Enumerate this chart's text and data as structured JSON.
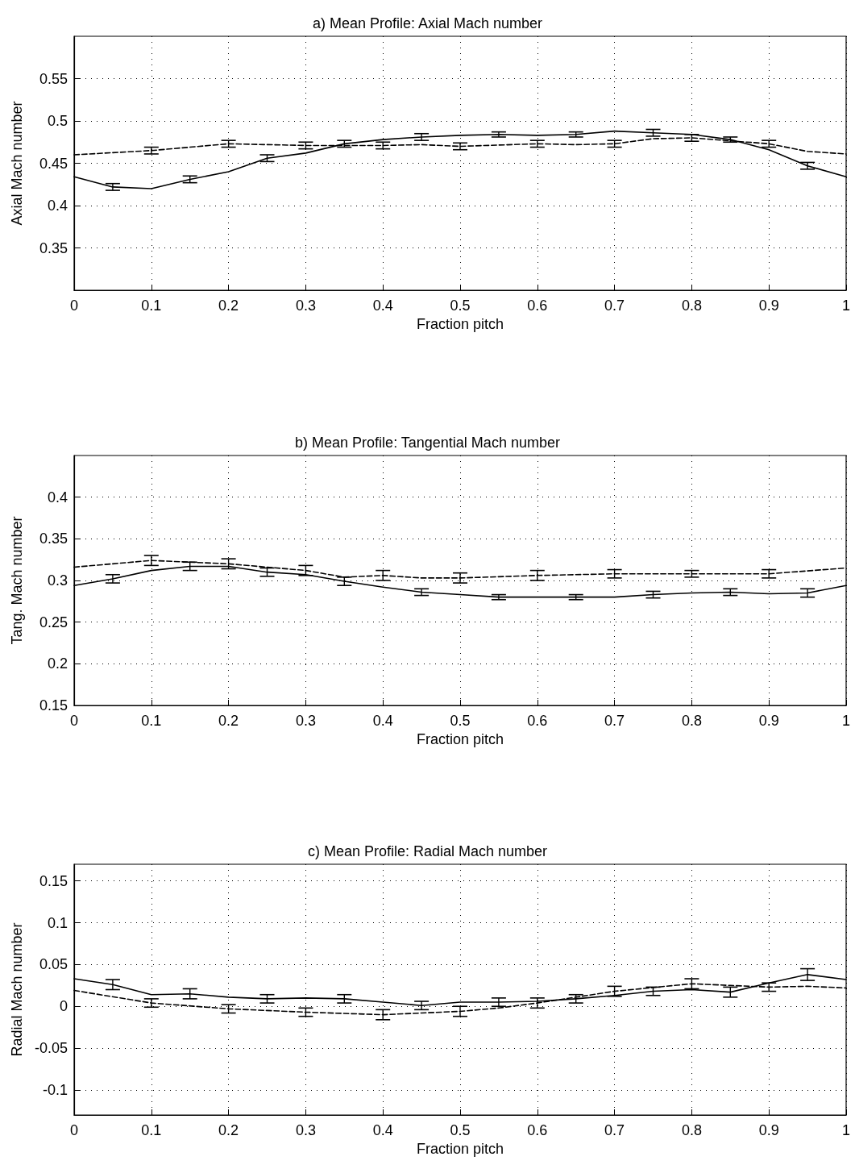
{
  "chart_data": [
    {
      "type": "line",
      "title": "a) Mean Profile: Axial Mach number",
      "xlabel": "Fraction pitch",
      "ylabel": "Axial Mach number",
      "xlim": [
        0,
        1
      ],
      "xticks": [
        0,
        0.1,
        0.2,
        0.3,
        0.4,
        0.5,
        0.6,
        0.7,
        0.8,
        0.9,
        1
      ],
      "ylim": [
        0.3,
        0.6
      ],
      "yticks": [
        0.35,
        0.4,
        0.45,
        0.5,
        0.55
      ],
      "grid": true,
      "marker": "none",
      "series": [
        {
          "color": "#000000",
          "line_style": "solid",
          "x": [
            0,
            0.05,
            0.1,
            0.15,
            0.2,
            0.25,
            0.3,
            0.35,
            0.4,
            0.45,
            0.5,
            0.55,
            0.6,
            0.65,
            0.7,
            0.75,
            0.8,
            0.85,
            0.9,
            0.95,
            1
          ],
          "values": [
            0.434,
            0.422,
            0.42,
            0.431,
            0.44,
            0.456,
            0.462,
            0.473,
            0.478,
            0.481,
            0.483,
            0.484,
            0.483,
            0.484,
            0.488,
            0.486,
            0.484,
            0.478,
            0.466,
            0.447,
            0.434
          ],
          "errors": [
            null,
            0.004,
            null,
            0.004,
            null,
            0.004,
            null,
            0.004,
            null,
            0.004,
            null,
            0.003,
            null,
            0.003,
            null,
            0.004,
            null,
            0.003,
            null,
            0.004,
            null
          ]
        },
        {
          "color": "#000000",
          "line_style": "dashed",
          "x": [
            0,
            0.1,
            0.2,
            0.3,
            0.4,
            0.45,
            0.5,
            0.6,
            0.65,
            0.7,
            0.75,
            0.8,
            0.9,
            0.95,
            1
          ],
          "values": [
            0.46,
            0.465,
            0.473,
            0.471,
            0.471,
            0.472,
            0.47,
            0.473,
            0.472,
            0.473,
            0.479,
            0.48,
            0.473,
            0.464,
            0.461
          ],
          "errors": [
            null,
            0.004,
            0.004,
            0.004,
            0.004,
            null,
            0.004,
            0.004,
            null,
            0.004,
            null,
            0.004,
            0.004,
            null,
            null
          ]
        }
      ]
    },
    {
      "type": "line",
      "title": "b) Mean Profile: Tangential Mach number",
      "xlabel": "Fraction pitch",
      "ylabel": "Tang. Mach number",
      "xlim": [
        0,
        1
      ],
      "xticks": [
        0,
        0.1,
        0.2,
        0.3,
        0.4,
        0.5,
        0.6,
        0.7,
        0.8,
        0.9,
        1
      ],
      "ylim": [
        0.15,
        0.45
      ],
      "yticks": [
        0.15,
        0.2,
        0.25,
        0.3,
        0.35,
        0.4
      ],
      "grid": true,
      "marker": "none",
      "series": [
        {
          "color": "#000000",
          "line_style": "solid",
          "x": [
            0,
            0.05,
            0.1,
            0.15,
            0.2,
            0.25,
            0.3,
            0.35,
            0.4,
            0.45,
            0.5,
            0.55,
            0.6,
            0.65,
            0.7,
            0.75,
            0.8,
            0.85,
            0.9,
            0.95,
            1
          ],
          "values": [
            0.294,
            0.302,
            0.312,
            0.317,
            0.317,
            0.31,
            0.307,
            0.299,
            0.292,
            0.286,
            0.283,
            0.28,
            0.28,
            0.28,
            0.28,
            0.283,
            0.285,
            0.286,
            0.284,
            0.285,
            0.294
          ],
          "errors": [
            null,
            0.005,
            null,
            0.005,
            null,
            0.005,
            null,
            0.005,
            null,
            0.004,
            null,
            0.003,
            null,
            0.003,
            null,
            0.004,
            null,
            0.004,
            null,
            0.005,
            null
          ]
        },
        {
          "color": "#000000",
          "line_style": "dashed",
          "x": [
            0,
            0.1,
            0.15,
            0.2,
            0.3,
            0.35,
            0.4,
            0.45,
            0.5,
            0.6,
            0.7,
            0.8,
            0.9,
            1
          ],
          "values": [
            0.316,
            0.324,
            0.322,
            0.32,
            0.312,
            0.304,
            0.306,
            0.303,
            0.303,
            0.306,
            0.308,
            0.308,
            0.308,
            0.315
          ],
          "errors": [
            null,
            0.006,
            null,
            0.006,
            0.006,
            null,
            0.006,
            null,
            0.006,
            0.006,
            0.005,
            0.004,
            0.005,
            null
          ]
        }
      ]
    },
    {
      "type": "line",
      "title": "c) Mean Profile: Radial Mach number",
      "xlabel": "Fraction pitch",
      "ylabel": "Radial Mach number",
      "xlim": [
        0,
        1
      ],
      "xticks": [
        0,
        0.1,
        0.2,
        0.3,
        0.4,
        0.5,
        0.6,
        0.7,
        0.8,
        0.9,
        1
      ],
      "ylim": [
        -0.13,
        0.17
      ],
      "yticks": [
        -0.1,
        -0.05,
        0,
        0.05,
        0.1,
        0.15
      ],
      "grid": true,
      "marker": "none",
      "series": [
        {
          "color": "#000000",
          "line_style": "solid",
          "x": [
            0,
            0.05,
            0.1,
            0.15,
            0.2,
            0.25,
            0.3,
            0.35,
            0.4,
            0.45,
            0.5,
            0.55,
            0.6,
            0.65,
            0.7,
            0.75,
            0.8,
            0.85,
            0.9,
            0.95,
            1
          ],
          "values": [
            0.033,
            0.026,
            0.014,
            0.015,
            0.011,
            0.009,
            0.01,
            0.009,
            0.005,
            0.001,
            0.005,
            0.005,
            0.006,
            0.009,
            0.013,
            0.018,
            0.02,
            0.017,
            0.028,
            0.038,
            0.032
          ],
          "errors": [
            null,
            0.006,
            null,
            0.006,
            null,
            0.005,
            null,
            0.005,
            null,
            0.005,
            null,
            0.005,
            null,
            0.005,
            null,
            0.005,
            null,
            0.006,
            null,
            0.007,
            null
          ]
        },
        {
          "color": "#000000",
          "line_style": "dashed",
          "x": [
            0,
            0.1,
            0.2,
            0.3,
            0.4,
            0.45,
            0.5,
            0.55,
            0.6,
            0.7,
            0.8,
            0.85,
            0.9,
            0.95,
            1
          ],
          "values": [
            0.019,
            0.004,
            -0.003,
            -0.007,
            -0.01,
            -0.008,
            -0.006,
            -0.002,
            0.004,
            0.018,
            0.027,
            0.025,
            0.023,
            0.024,
            0.022
          ],
          "errors": [
            null,
            0.005,
            0.005,
            0.005,
            0.006,
            null,
            0.006,
            null,
            0.006,
            0.006,
            0.006,
            null,
            0.005,
            null,
            null
          ]
        }
      ]
    }
  ]
}
